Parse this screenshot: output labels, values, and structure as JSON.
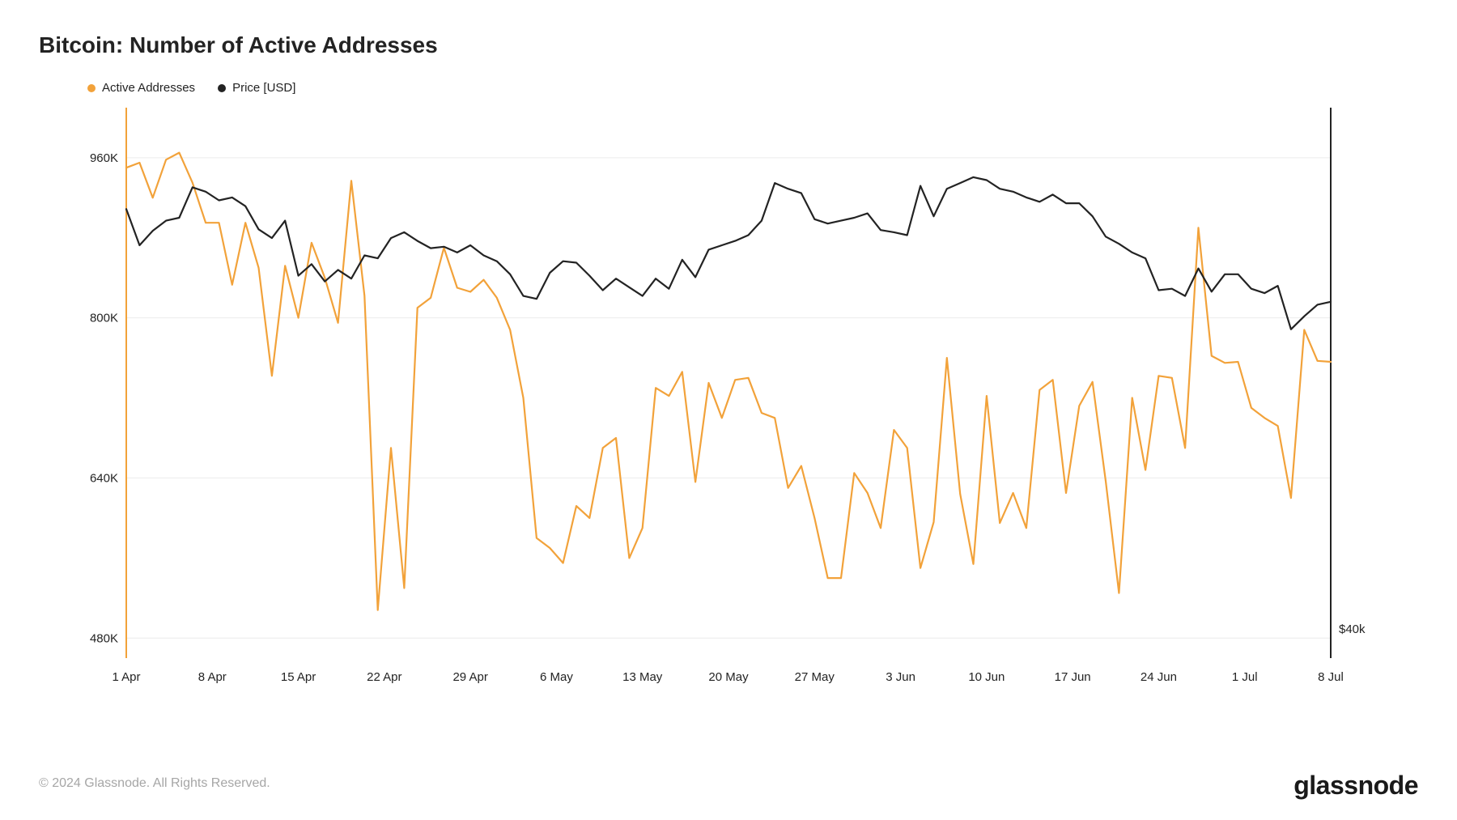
{
  "title": "Bitcoin: Number of Active Addresses",
  "legend": {
    "series1": {
      "label": "Active Addresses",
      "color": "#f2a23a"
    },
    "series2": {
      "label": "Price [USD]",
      "color": "#232323"
    }
  },
  "chart": {
    "type": "line",
    "background_color": "#ffffff",
    "grid_color": "#ececec",
    "axis_color": "#f2a23a",
    "axis_right_color": "#232323",
    "font_family": "-apple-system, sans-serif",
    "axis_fontsize": 15,
    "x": {
      "labels": [
        "1 Apr",
        "8 Apr",
        "15 Apr",
        "22 Apr",
        "29 Apr",
        "6 May",
        "13 May",
        "20 May",
        "27 May",
        "3 Jun",
        "10 Jun",
        "17 Jun",
        "24 Jun",
        "1 Jul",
        "8 Jul"
      ],
      "min": 0,
      "max": 99
    },
    "y_left": {
      "ticks": [
        480000,
        640000,
        800000,
        960000
      ],
      "tick_labels": [
        "480K",
        "640K",
        "800K",
        "960K"
      ],
      "min": 460000,
      "max": 1010000
    },
    "y_right": {
      "ticks": [
        40000
      ],
      "tick_labels": [
        "$40k"
      ],
      "min": 38000,
      "max": 76000
    },
    "series": {
      "active_addresses": {
        "color": "#f2a23a",
        "line_width": 2.2,
        "values": [
          950000,
          955000,
          920000,
          958000,
          965000,
          935000,
          895000,
          895000,
          833000,
          895000,
          850000,
          742000,
          852000,
          800000,
          875000,
          840000,
          795000,
          937000,
          822000,
          508000,
          670000,
          530000,
          810000,
          820000,
          870000,
          830000,
          826000,
          838000,
          820000,
          788000,
          720000,
          580000,
          570000,
          555000,
          612000,
          600000,
          670000,
          680000,
          560000,
          590000,
          730000,
          722000,
          746000,
          636000,
          735000,
          700000,
          738000,
          740000,
          705000,
          700000,
          630000,
          652000,
          600000,
          540000,
          540000,
          645000,
          625000,
          590000,
          688000,
          670000,
          550000,
          596000,
          760000,
          624000,
          554000,
          722000,
          595000,
          625000,
          590000,
          728000,
          738000,
          625000,
          712000,
          736000,
          637000,
          525000,
          720000,
          648000,
          742000,
          740000,
          670000,
          890000,
          762000,
          755000,
          756000,
          710000,
          700000,
          692000,
          620000,
          788000,
          757000,
          756000
        ]
      },
      "price_usd": {
        "color": "#232323",
        "line_width": 2.2,
        "values": [
          69000,
          66500,
          67500,
          68200,
          68400,
          70500,
          70200,
          69600,
          69800,
          69200,
          67600,
          67000,
          68200,
          64400,
          65200,
          64000,
          64800,
          64200,
          65800,
          65600,
          67000,
          67400,
          66800,
          66300,
          66400,
          66000,
          66500,
          65800,
          65400,
          64500,
          63000,
          62800,
          64600,
          65400,
          65300,
          64400,
          63400,
          64200,
          63600,
          63000,
          64200,
          63500,
          65500,
          64300,
          66200,
          66500,
          66800,
          67200,
          68200,
          70800,
          70400,
          70100,
          68300,
          68000,
          68200,
          68400,
          68700,
          67550,
          67400,
          67200,
          70600,
          68500,
          70400,
          70800,
          71200,
          71000,
          70400,
          70200,
          69800,
          69500,
          70000,
          69400,
          69400,
          68500,
          67100,
          66600,
          66000,
          65600,
          63400,
          63500,
          63000,
          64900,
          63300,
          64500,
          64500,
          63500,
          63200,
          63700,
          60700,
          61600,
          62400,
          62600
        ]
      }
    }
  },
  "footer": "© 2024 Glassnode. All Rights Reserved.",
  "brand": "glassnode"
}
